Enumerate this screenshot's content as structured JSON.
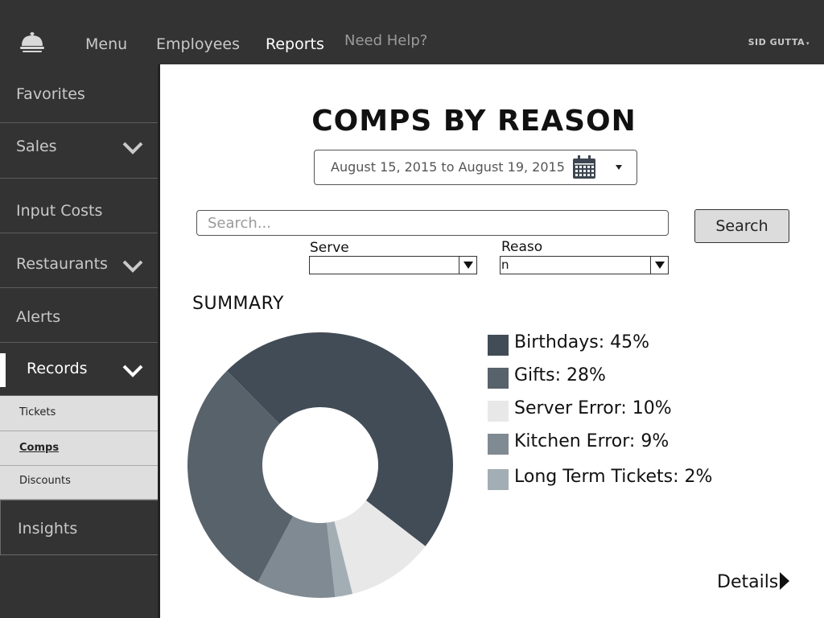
{
  "topbar": {
    "logo_icon": "cloche-icon",
    "nav": [
      {
        "label": "Menu"
      },
      {
        "label": "Employees"
      },
      {
        "label": "Reports",
        "active": true
      }
    ],
    "help_label": "Need Help?",
    "user_name": "SID GUTTA",
    "user_caret": "▾"
  },
  "sidebar": {
    "items": [
      {
        "label": "Favorites"
      },
      {
        "label": "Sales",
        "icon": "chevron-down-icon"
      },
      {
        "label": "Input Costs"
      },
      {
        "label": "Restaurants",
        "icon": "chevron-down-icon"
      },
      {
        "label": "Alerts"
      },
      {
        "label": "Records",
        "icon": "chevron-down-icon",
        "expanded": true
      }
    ],
    "sub_items": [
      {
        "label": "Tickets"
      },
      {
        "label": "Comps",
        "active": true
      },
      {
        "label": "Discounts"
      }
    ],
    "insights_label": "Insights"
  },
  "main": {
    "title": "COMPS BY REASON",
    "date_range": "August 15, 2015 to August 19, 2015",
    "date_icon": "calendar-icon",
    "search": {
      "placeholder": "Search...",
      "value": "",
      "button_label": "Search"
    },
    "filters": {
      "server_label": "Serve",
      "server_value": "",
      "reason_label": "Reaso",
      "reason_value": "n"
    },
    "summary_heading": "SUMMARY",
    "details_label": "Details"
  },
  "chart_data": {
    "type": "pie",
    "style": "donut",
    "title": "SUMMARY",
    "series": [
      {
        "name": "Birthdays",
        "value": 45,
        "label": "Birthdays: 45%",
        "color": "#414c56"
      },
      {
        "name": "Gifts",
        "value": 28,
        "label": "Gifts: 28%",
        "color": "#58626b"
      },
      {
        "name": "Server Error",
        "value": 10,
        "label": "Server Error: 10%",
        "color": "#e8e8e8"
      },
      {
        "name": "Kitchen Error",
        "value": 9,
        "label": "Kitchen Error: 9%",
        "color": "#808a92"
      },
      {
        "name": "Long Term Tickets",
        "value": 2,
        "label": "Long Term Tickets: 2%",
        "color": "#a3adb4"
      }
    ],
    "unit": "%",
    "legend_position": "right"
  }
}
